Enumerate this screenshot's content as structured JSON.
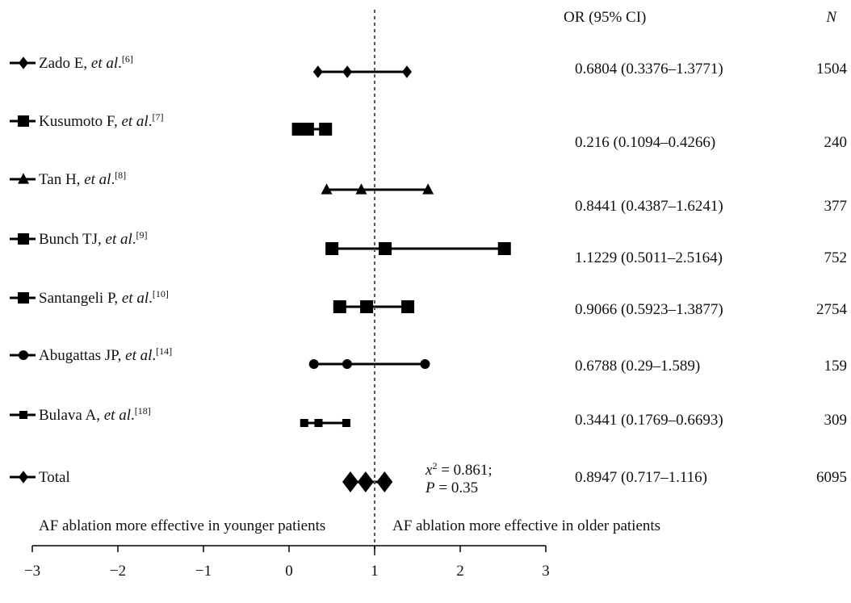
{
  "chart_data": {
    "type": "forest",
    "xlim": [
      -3,
      3
    ],
    "xticks": [
      "−3",
      "−2",
      "−1",
      "0",
      "1",
      "2",
      "3"
    ],
    "xtick_values": [
      -3,
      -2,
      -1,
      0,
      1,
      2,
      3
    ],
    "reference_line": 1,
    "col_header_or": "OR (95% CI)",
    "col_header_n": "N",
    "direction_left": "AF ablation more effective in younger patients",
    "direction_right": "AF ablation more effective in older patients",
    "studies": [
      {
        "author": "Zado E, ",
        "etal": "et al",
        "ref": "[6]",
        "or": 0.6804,
        "lo": 0.3376,
        "hi": 1.3771,
        "or_text": "0.6804 (0.3376–1.3771)",
        "n": "1504",
        "marker": "diamond"
      },
      {
        "author": "Kusumoto F, ",
        "etal": "et al",
        "ref": "[7]",
        "or": 0.216,
        "lo": 0.1094,
        "hi": 0.4266,
        "or_text": "0.216 (0.1094–0.4266)",
        "n": "240",
        "marker": "square"
      },
      {
        "author": "Tan H, ",
        "etal": "et al",
        "ref": "[8]",
        "or": 0.8441,
        "lo": 0.4387,
        "hi": 1.6241,
        "or_text": "0.8441 (0.4387–1.6241)",
        "n": "377",
        "marker": "triangle"
      },
      {
        "author": "Bunch TJ, ",
        "etal": "et al",
        "ref": "[9]",
        "or": 1.1229,
        "lo": 0.5011,
        "hi": 2.5164,
        "or_text": "1.1229 (0.5011–2.5164)",
        "n": "752",
        "marker": "square"
      },
      {
        "author": "Santangeli P, ",
        "etal": "et al",
        "ref": "[10]",
        "or": 0.9066,
        "lo": 0.5923,
        "hi": 1.3877,
        "or_text": "0.9066 (0.5923–1.3877)",
        "n": "2754",
        "marker": "square"
      },
      {
        "author": "Abugattas JP, ",
        "etal": "et al",
        "ref": "[14]",
        "or": 0.6788,
        "lo": 0.29,
        "hi": 1.589,
        "or_text": "0.6788 (0.29–1.589)",
        "n": "159",
        "marker": "circle"
      },
      {
        "author": "Bulava A, ",
        "etal": "et al",
        "ref": "[18]",
        "or": 0.3441,
        "lo": 0.1769,
        "hi": 0.6693,
        "or_text": "0.3441 (0.1769–0.6693)",
        "n": "309",
        "marker": "square"
      }
    ],
    "total": {
      "label": "Total",
      "or": 0.8947,
      "lo": 0.717,
      "hi": 1.116,
      "or_text": "0.8947 (0.717–1.116)",
      "n": "6095",
      "marker": "diamond"
    },
    "heterogeneity": {
      "chi_sym": "x",
      "chi_sup": "2",
      "chi_value": " = 0.861;",
      "p_sym": "P",
      "p_value": " = 0.35"
    }
  }
}
